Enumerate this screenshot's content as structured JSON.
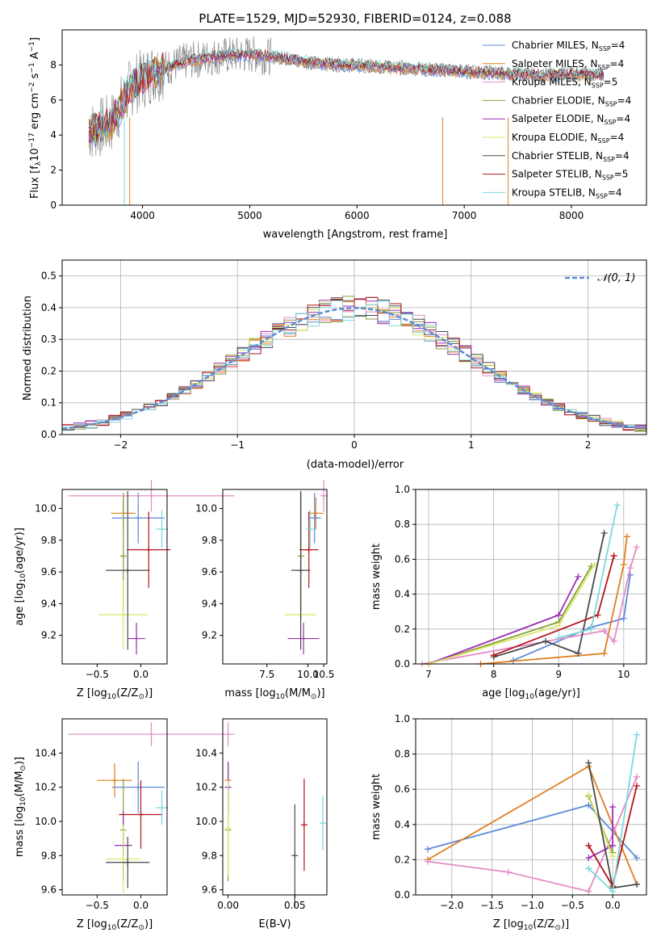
{
  "colors": {
    "Chabrier MILES": "#5b8bd6",
    "Salpeter MILES": "#e07e1e",
    "Kroupa MILES": "#e48bc6",
    "Chabrier ELODIE": "#8a9e3a",
    "Salpeter ELODIE": "#9b2fb5",
    "Kroupa ELODIE": "#d8e86a",
    "Chabrier STELIB": "#4a4a4a",
    "Salpeter STELIB": "#b0161c",
    "Kroupa STELIB": "#7ed8dc",
    "normal": "#5b8bd6",
    "gray": "#808080"
  },
  "chart_data": [
    {
      "type": "line",
      "title": "PLATE=1529, MJD=52930, FIBERID=0124, z=0.088",
      "xlabel": "wavelength [Angstrom, rest frame]",
      "ylabel": "Flux [f",
      "ylabel_sub": "λ",
      "ylabel_rest": "10",
      "ylabel_sup1": "−17",
      "ylabel_rest2": " erg cm",
      "ylabel_sup2": "−2",
      "ylabel_rest3": " s",
      "ylabel_sup3": "−1",
      "ylabel_rest4": " A",
      "ylabel_sup4": "−1",
      "ylabel_end": "]",
      "xlim": [
        3250,
        8700
      ],
      "ylim": [
        0,
        10
      ],
      "xticks": [
        4000,
        5000,
        6000,
        7000,
        8000
      ],
      "yticks": [
        0,
        2,
        4,
        6,
        8
      ],
      "continuum": {
        "x": [
          3500,
          3700,
          3900,
          4100,
          4400,
          4700,
          5000,
          5300,
          5600,
          5900,
          6200,
          6500,
          6800,
          7100,
          7400,
          7700,
          8000,
          8300
        ],
        "y": [
          4.2,
          4.6,
          6.8,
          7.6,
          8.2,
          8.5,
          8.6,
          8.4,
          8.1,
          8.0,
          7.9,
          7.8,
          7.7,
          7.6,
          7.5,
          7.4,
          7.5,
          7.4
        ]
      },
      "legend": [
        {
          "pre": "Chabrier MILES, N",
          "sub": "SSP",
          "post": "=4"
        },
        {
          "pre": "Salpeter MILES, N",
          "sub": "SSP",
          "post": "=4"
        },
        {
          "pre": "Kroupa MILES, N",
          "sub": "SSP",
          "post": "=5"
        },
        {
          "pre": "Chabrier ELODIE, N",
          "sub": "SSP",
          "post": "=4"
        },
        {
          "pre": "Salpeter ELODIE, N",
          "sub": "SSP",
          "post": "=4"
        },
        {
          "pre": "Kroupa ELODIE, N",
          "sub": "SSP",
          "post": "=4"
        },
        {
          "pre": "Chabrier STELIB, N",
          "sub": "SSP",
          "post": "=4"
        },
        {
          "pre": "Salpeter STELIB, N",
          "sub": "SSP",
          "post": "=5"
        },
        {
          "pre": "Kroupa STELIB, N",
          "sub": "SSP",
          "post": "=4"
        }
      ],
      "legend_position": "right"
    },
    {
      "type": "histogram",
      "xlabel": "(data-model)/error",
      "ylabel": "Normed distribution",
      "xlim": [
        -2.5,
        2.5
      ],
      "ylim": [
        0,
        0.55
      ],
      "xticks": [
        -2,
        -1,
        0,
        1,
        2
      ],
      "xtick_labels": [
        "−2",
        "−1",
        "0",
        "1",
        "2"
      ],
      "yticks": [
        0,
        0.1,
        0.2,
        0.3,
        0.4,
        0.5
      ],
      "ytick_labels": [
        "0.0",
        "0.1",
        "0.2",
        "0.3",
        "0.4",
        "0.5"
      ],
      "grid": true,
      "bin_width": 0.1,
      "legend_label": "𝒩(0, 1)",
      "legend_position": "top-right"
    },
    {
      "type": "scatter",
      "xlabel": "Z [log",
      "xlabel_sub": "10",
      "xlabel_rest": "(Z/Z",
      "xlabel_sub2": "⊙",
      "xlabel_end": ")]",
      "ylabel": "age  [log",
      "ylabel_sub": "10",
      "ylabel_rest": "(age/yr)]",
      "xlim": [
        -0.9,
        0.3
      ],
      "ylim": [
        9.02,
        10.12
      ],
      "xticks": [
        -0.5,
        0.0
      ],
      "xtick_labels": [
        "−0.5",
        "0.0"
      ],
      "yticks": [
        9.2,
        9.4,
        9.6,
        9.8,
        10.0
      ],
      "ytick_labels": [
        "9.2",
        "9.4",
        "9.6",
        "9.8",
        "10.0"
      ],
      "points": [
        {
          "series": "Chabrier MILES",
          "x": -0.03,
          "xerr": 0.3,
          "y": 9.94,
          "yerr": 0.16
        },
        {
          "series": "Salpeter MILES",
          "x": -0.2,
          "xerr": 0.14,
          "y": 9.97,
          "yerr": 0.1
        },
        {
          "series": "Kroupa MILES",
          "x": 0.12,
          "xerr": 0.95,
          "y": 10.08,
          "yerr": 0.1
        },
        {
          "series": "Chabrier ELODIE",
          "x": -0.2,
          "xerr": 0.0,
          "y": 9.7,
          "yerr": 0.4
        },
        {
          "series": "Salpeter ELODIE",
          "x": -0.05,
          "xerr": 0.1,
          "y": 9.18,
          "yerr": 0.1
        },
        {
          "series": "Kroupa ELODIE",
          "x": -0.2,
          "xerr": 0.28,
          "y": 9.33,
          "yerr": 0.22
        },
        {
          "series": "Chabrier STELIB",
          "x": -0.15,
          "xerr": 0.25,
          "y": 9.61,
          "yerr": 0.5
        },
        {
          "series": "Salpeter STELIB",
          "x": 0.09,
          "xerr": 0.25,
          "y": 9.74,
          "yerr": 0.24
        },
        {
          "series": "Kroupa STELIB",
          "x": 0.24,
          "xerr": 0.07,
          "y": 9.87,
          "yerr": 0.12
        }
      ]
    },
    {
      "type": "scatter",
      "xlabel": "mass [log",
      "xlabel_sub": "10",
      "xlabel_rest": "(M/M",
      "xlabel_sub2": "⊙",
      "xlabel_end": ")]",
      "xlim": [
        7.3,
        10.6
      ],
      "ylim": [
        9.02,
        10.12
      ],
      "xticks": [
        7.5,
        10.0,
        10.5
      ],
      "xtick_labels": [
        "7.5",
        "10.0",
        "10.5"
      ],
      "xtick_display_pos": [
        8.7,
        10.0,
        10.5
      ],
      "yticks": [
        9.2,
        9.4,
        9.6,
        9.8,
        10.0
      ],
      "ytick_labels": [
        "9.2",
        "9.4",
        "9.6",
        "9.8",
        "10.0"
      ],
      "points": [
        {
          "series": "Chabrier MILES",
          "x": 10.21,
          "xerr": 0.2,
          "y": 9.94,
          "yerr": 0.16
        },
        {
          "series": "Salpeter MILES",
          "x": 10.25,
          "xerr": 0.25,
          "y": 9.97,
          "yerr": 0.1
        },
        {
          "series": "Kroupa MILES",
          "x": 10.5,
          "xerr": 0.1,
          "y": 10.08,
          "yerr": 0.1
        },
        {
          "series": "Chabrier ELODIE",
          "x": 9.78,
          "xerr": 0.0,
          "y": 9.7,
          "yerr": 0.4
        },
        {
          "series": "Salpeter ELODIE",
          "x": 9.86,
          "xerr": 0.5,
          "y": 9.18,
          "yerr": 0.1
        },
        {
          "series": "Kroupa ELODIE",
          "x": 9.77,
          "xerr": 0.5,
          "y": 9.33,
          "yerr": 0.22
        },
        {
          "series": "Chabrier STELIB",
          "x": 9.77,
          "xerr": 0.3,
          "y": 9.61,
          "yerr": 0.5
        },
        {
          "series": "Salpeter STELIB",
          "x": 10.03,
          "xerr": 0.3,
          "y": 9.74,
          "yerr": 0.24
        },
        {
          "series": "Kroupa STELIB",
          "x": 10.07,
          "xerr": 0.12,
          "y": 9.87,
          "yerr": 0.12
        }
      ]
    },
    {
      "type": "line",
      "xlabel": "age  [log",
      "xlabel_sub": "10",
      "xlabel_rest": "(age/yr)]",
      "ylabel": "mass weight",
      "xlim": [
        6.8,
        10.35
      ],
      "ylim": [
        0,
        1.0
      ],
      "xticks": [
        7,
        8,
        9,
        10
      ],
      "yticks": [
        0,
        0.2,
        0.4,
        0.6,
        0.8,
        1.0
      ],
      "ytick_labels": [
        "0.0",
        "0.2",
        "0.4",
        "0.6",
        "0.8",
        "1.0"
      ],
      "grid": true,
      "series": [
        {
          "name": "Chabrier MILES",
          "x": [
            8.3,
            9.5,
            10.0,
            10.1
          ],
          "y": [
            0.02,
            0.21,
            0.26,
            0.51
          ]
        },
        {
          "name": "Salpeter MILES",
          "x": [
            7.8,
            9.7,
            10.0,
            10.05
          ],
          "y": [
            0.0,
            0.06,
            0.57,
            0.73
          ]
        },
        {
          "name": "Kroupa MILES",
          "x": [
            6.9,
            9.7,
            9.85,
            10.1,
            10.2
          ],
          "y": [
            0.0,
            0.19,
            0.13,
            0.55,
            0.67
          ]
        },
        {
          "name": "Chabrier ELODIE",
          "x": [
            7.0,
            9.0,
            9.5
          ],
          "y": [
            0.0,
            0.24,
            0.56
          ]
        },
        {
          "name": "Salpeter ELODIE",
          "x": [
            7.0,
            9.0,
            9.3
          ],
          "y": [
            0.0,
            0.28,
            0.5
          ]
        },
        {
          "name": "Kroupa ELODIE",
          "x": [
            7.0,
            9.0,
            9.55
          ],
          "y": [
            0.0,
            0.22,
            0.57
          ]
        },
        {
          "name": "Chabrier STELIB",
          "x": [
            8.0,
            8.8,
            9.3,
            9.7
          ],
          "y": [
            0.04,
            0.13,
            0.06,
            0.75
          ]
        },
        {
          "name": "Salpeter STELIB",
          "x": [
            8.0,
            9.6,
            9.85
          ],
          "y": [
            0.05,
            0.28,
            0.62
          ]
        },
        {
          "name": "Kroupa STELIB",
          "x": [
            9.0,
            9.5,
            9.9
          ],
          "y": [
            0.15,
            0.2,
            0.91
          ]
        }
      ]
    },
    {
      "type": "scatter",
      "xlabel": "Z [log",
      "xlabel_sub": "10",
      "xlabel_rest": "(Z/Z",
      "xlabel_sub2": "⊙",
      "xlabel_end": ")]",
      "ylabel": "mass [log",
      "ylabel_sub": "10",
      "ylabel_rest": "(M/M",
      "ylabel_sub2": "⊙",
      "ylabel_end": ")]",
      "xlim": [
        -0.9,
        0.3
      ],
      "ylim": [
        9.57,
        10.6
      ],
      "xticks": [
        -0.5,
        0.0
      ],
      "xtick_labels": [
        "−0.5",
        "0.0"
      ],
      "yticks": [
        9.6,
        9.8,
        10.0,
        10.2,
        10.4
      ],
      "ytick_labels": [
        "9.6",
        "9.8",
        "10.0",
        "10.2",
        "10.4"
      ],
      "points": [
        {
          "series": "Chabrier MILES",
          "x": -0.03,
          "xerr": 0.3,
          "y": 10.2,
          "yerr": 0.15
        },
        {
          "series": "Salpeter MILES",
          "x": -0.3,
          "xerr": 0.2,
          "y": 10.24,
          "yerr": 0.1
        },
        {
          "series": "Kroupa MILES",
          "x": 0.12,
          "xerr": 0.95,
          "y": 10.51,
          "yerr": 0.07
        },
        {
          "series": "Chabrier ELODIE",
          "x": -0.2,
          "xerr": 0.0,
          "y": 9.95,
          "yerr": 0.3
        },
        {
          "series": "Salpeter ELODIE",
          "x": -0.2,
          "xerr": 0.1,
          "y": 9.86,
          "yerr": 0.2
        },
        {
          "series": "Kroupa ELODIE",
          "x": -0.2,
          "xerr": 0.2,
          "y": 9.78,
          "yerr": 0.2
        },
        {
          "series": "Chabrier STELIB",
          "x": -0.15,
          "xerr": 0.25,
          "y": 9.76,
          "yerr": 0.15
        },
        {
          "series": "Salpeter STELIB",
          "x": 0.0,
          "xerr": 0.25,
          "y": 10.04,
          "yerr": 0.2
        },
        {
          "series": "Kroupa STELIB",
          "x": 0.24,
          "xerr": 0.07,
          "y": 10.08,
          "yerr": 0.1
        }
      ]
    },
    {
      "type": "scatter",
      "xlabel": "E(B-V)",
      "xlim": [
        -0.004,
        0.074
      ],
      "ylim": [
        9.57,
        10.6
      ],
      "xticks": [
        0.0,
        0.05
      ],
      "xtick_labels": [
        "0.00",
        "0.05"
      ],
      "yticks": [
        9.6,
        9.8,
        10.0,
        10.2,
        10.4
      ],
      "ytick_labels": [
        "9.6",
        "9.8",
        "10.0",
        "10.2",
        "10.4"
      ],
      "points": [
        {
          "series": "Chabrier MILES",
          "x": 0.0,
          "y": 10.2,
          "yerr": 0.15
        },
        {
          "series": "Salpeter MILES",
          "x": 0.0,
          "y": 10.24,
          "yerr": 0.1
        },
        {
          "series": "Kroupa MILES",
          "x": 0.0,
          "y": 10.51,
          "yerr": 0.07
        },
        {
          "series": "Chabrier ELODIE",
          "x": 0.0,
          "y": 9.95,
          "yerr": 0.3
        },
        {
          "series": "Salpeter ELODIE",
          "x": 0.0,
          "y": 10.2,
          "yerr": 0.15
        },
        {
          "series": "Kroupa ELODIE",
          "x": 0.0,
          "y": 9.96,
          "yerr": 0.28
        },
        {
          "series": "Chabrier STELIB",
          "x": 0.05,
          "y": 9.8,
          "yerr": 0.3
        },
        {
          "series": "Salpeter STELIB",
          "x": 0.057,
          "y": 9.98,
          "yerr": 0.27
        },
        {
          "series": "Kroupa STELIB",
          "x": 0.071,
          "y": 9.99,
          "yerr": 0.16
        }
      ]
    },
    {
      "type": "line",
      "xlabel": "Z [log",
      "xlabel_sub": "10",
      "xlabel_rest": "(Z/Z",
      "xlabel_sub2": "⊙",
      "xlabel_end": ")]",
      "ylabel": "mass weight",
      "xlim": [
        -2.45,
        0.42
      ],
      "ylim": [
        0,
        1.0
      ],
      "xticks": [
        -2.0,
        -1.5,
        -1.0,
        -0.5,
        0.0
      ],
      "xtick_labels": [
        "−2.0",
        "−1.5",
        "−1.0",
        "−0.5",
        "0.0"
      ],
      "yticks": [
        0,
        0.2,
        0.4,
        0.6,
        0.8,
        1.0
      ],
      "ytick_labels": [
        "0.0",
        "0.2",
        "0.4",
        "0.6",
        "0.8",
        "1.0"
      ],
      "grid": true,
      "series": [
        {
          "name": "Chabrier MILES",
          "x": [
            -2.3,
            -0.3,
            0.3
          ],
          "y": [
            0.26,
            0.51,
            0.21
          ]
        },
        {
          "name": "Salpeter MILES",
          "x": [
            -2.3,
            -0.3,
            0.3
          ],
          "y": [
            0.2,
            0.73,
            0.06
          ]
        },
        {
          "name": "Kroupa MILES",
          "x": [
            -2.3,
            -1.3,
            -0.3,
            0.3
          ],
          "y": [
            0.19,
            0.13,
            0.02,
            0.67
          ]
        },
        {
          "name": "Chabrier ELODIE",
          "x": [
            -0.3,
            0.0
          ],
          "y": [
            0.56,
            0.24
          ]
        },
        {
          "name": "Salpeter ELODIE",
          "x": [
            -0.3,
            0.0,
            0.0
          ],
          "y": [
            0.21,
            0.28,
            0.5
          ]
        },
        {
          "name": "Kroupa ELODIE",
          "x": [
            -0.3,
            0.0
          ],
          "y": [
            0.57,
            0.22
          ]
        },
        {
          "name": "Chabrier STELIB",
          "x": [
            -0.3,
            0.0,
            0.3
          ],
          "y": [
            0.75,
            0.04,
            0.06
          ]
        },
        {
          "name": "Salpeter STELIB",
          "x": [
            -0.3,
            0.0,
            0.3
          ],
          "y": [
            0.28,
            0.05,
            0.62
          ]
        },
        {
          "name": "Kroupa STELIB",
          "x": [
            -0.3,
            0.0,
            0.3
          ],
          "y": [
            0.15,
            0.02,
            0.91
          ]
        }
      ]
    }
  ]
}
